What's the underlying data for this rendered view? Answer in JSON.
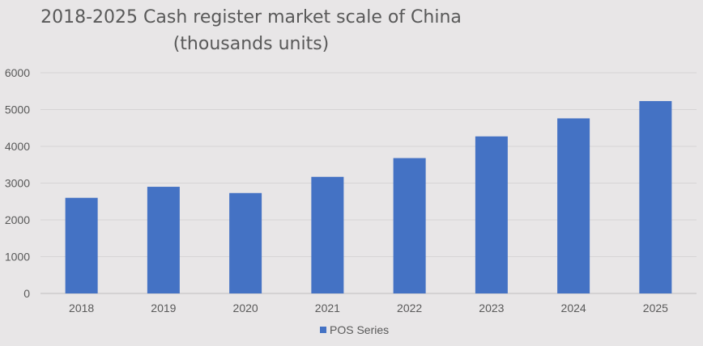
{
  "chart_data": {
    "type": "bar",
    "title_line1": "2018-2025 Cash register market scale of China",
    "title_line2": "(thousands units)",
    "categories": [
      "2018",
      "2019",
      "2020",
      "2021",
      "2022",
      "2023",
      "2024",
      "2025"
    ],
    "series": [
      {
        "name": "POS Series",
        "values": [
          2600,
          2900,
          2730,
          3170,
          3680,
          4270,
          4760,
          5230
        ],
        "color": "#4472c4"
      }
    ],
    "ylim": [
      0,
      6000
    ],
    "yticks": [
      "0",
      "1000",
      "2000",
      "3000",
      "4000",
      "5000",
      "6000"
    ],
    "grid": true,
    "legend_position": "bottom"
  }
}
